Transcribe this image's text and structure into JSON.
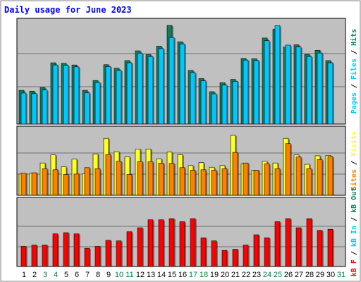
{
  "chart_data": {
    "type": "bar",
    "title": "Daily usage for June 2023",
    "days": [
      "1",
      "2",
      "3",
      "4",
      "5",
      "6",
      "7",
      "8",
      "9",
      "10",
      "11",
      "12",
      "13",
      "14",
      "15",
      "16",
      "17",
      "18",
      "19",
      "20",
      "21",
      "22",
      "23",
      "24",
      "25",
      "26",
      "27",
      "28",
      "29",
      "30",
      "31"
    ],
    "weekend_days": [
      "3",
      "4",
      "10",
      "11",
      "17",
      "18",
      "24",
      "25",
      "31"
    ],
    "colors": {
      "hits": "#0f7f60",
      "files": "#00c8ff",
      "pages": "#00c8ff",
      "visits": "#ffff20",
      "sites": "#ff8000",
      "kbin": "#ff0000",
      "kbout": "#ff0000",
      "weekday_label": "#000000",
      "weekend_label": "#007f40",
      "frame": "#808080",
      "panel_bg": "#c0c0c0",
      "grid": "#707070"
    },
    "panels": [
      {
        "max_label": "3701",
        "max": 3701,
        "series": [
          {
            "key": "hits",
            "values": [
              1240,
              1210,
              1340,
              2250,
              2230,
              2170,
              1240,
              1600,
              2180,
              2050,
              2330,
              2690,
              2550,
              2860,
              3620,
              3020,
              1970,
              1670,
              1190,
              1520,
              1640,
              2410,
              2400,
              3160,
              3480,
              2830,
              2910,
              2560,
              2710,
              2330,
              0
            ]
          },
          {
            "key": "files",
            "values": [
              1140,
              1120,
              1250,
              2170,
              2160,
              2100,
              1150,
              1530,
              2110,
              1970,
              2250,
              2600,
              2480,
              2770,
              3180,
              2940,
              1890,
              1590,
              1110,
              1430,
              1570,
              2350,
              2330,
              3060,
              3610,
              2900,
              2830,
              2480,
              2610,
              2250,
              0
            ]
          }
        ],
        "side_labels": [
          {
            "text": "Pages",
            "key": "pages"
          },
          {
            "text": "Files",
            "key": "files"
          },
          {
            "text": "Hits",
            "key": "hits"
          }
        ]
      },
      {
        "max_label": "282",
        "max": 282,
        "series": [
          {
            "key": "visits",
            "values": [
              100,
              104,
              152,
              190,
              134,
              170,
              102,
              194,
              268,
              205,
              181,
              218,
              218,
              172,
              203,
              191,
              140,
              154,
              132,
              140,
              282,
              148,
              118,
              160,
              152,
              268,
              190,
              146,
              186,
              188,
              0
            ]
          },
          {
            "key": "sites",
            "values": [
              104,
              106,
              125,
              120,
              98,
              100,
              130,
              125,
              192,
              160,
              98,
              158,
              158,
              151,
              150,
              130,
              118,
              120,
              118,
              125,
              202,
              152,
              118,
              148,
              125,
              243,
              180,
              125,
              168,
              182,
              0
            ]
          }
        ],
        "side_labels": [
          {
            "text": "Sites",
            "key": "sites"
          },
          {
            "text": "Visits",
            "key": "visits"
          }
        ]
      },
      {
        "max_label": "311916",
        "max": 311916,
        "series": [
          {
            "key": "kbin",
            "values": [
              0,
              0,
              0,
              0,
              0,
              0,
              0,
              0,
              0,
              0,
              0,
              0,
              0,
              0,
              0,
              0,
              0,
              0,
              0,
              0,
              0,
              0,
              0,
              0,
              0,
              0,
              0,
              0,
              0,
              0,
              0
            ]
          },
          {
            "key": "kbout",
            "values": [
              106000,
              113000,
              113000,
              172000,
              178000,
              172000,
              96000,
              106000,
              138000,
              135000,
              183000,
              204000,
              246000,
              246000,
              252000,
              236000,
              252000,
              151000,
              135000,
              85000,
              91000,
              113000,
              167000,
              151000,
              236000,
              252000,
              204000,
              252000,
              190000,
              196000,
              0
            ]
          }
        ],
        "side_labels": [
          {
            "text": "kB F",
            "key": "kbin"
          },
          {
            "text": "kB In",
            "key": "files"
          },
          {
            "text": "kB Out",
            "key": "hits"
          }
        ]
      }
    ]
  }
}
